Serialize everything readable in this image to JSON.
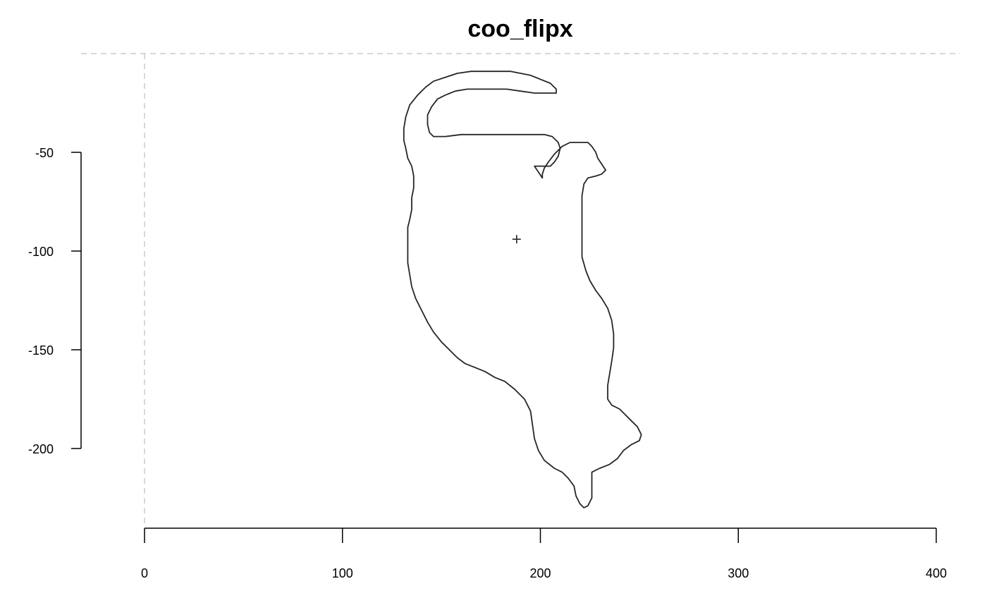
{
  "chart_data": {
    "type": "line",
    "title": "coo_flipx",
    "xlabel": "",
    "ylabel": "",
    "xlim": [
      0,
      400
    ],
    "ylim": [
      -250,
      0
    ],
    "x_ticks": [
      0,
      100,
      200,
      300,
      400
    ],
    "y_ticks": [
      -50,
      -100,
      -150,
      -200
    ],
    "x_tick_labels": [
      "0",
      "100",
      "200",
      "300",
      "400"
    ],
    "y_tick_labels": [
      "-50",
      "-100",
      "-150",
      "-200"
    ],
    "guides": {
      "vertical_at_x": 0,
      "horizontal_at_y": 0
    },
    "centroid": {
      "x": 188,
      "y": -94
    },
    "series": [
      {
        "points": [
          [
            180,
            -9
          ],
          [
            173,
            -9
          ],
          [
            165,
            -9
          ],
          [
            158,
            -10
          ],
          [
            152,
            -12
          ],
          [
            146,
            -14
          ],
          [
            142,
            -17
          ],
          [
            138,
            -21
          ],
          [
            134,
            -26
          ],
          [
            132,
            -32
          ],
          [
            131,
            -38
          ],
          [
            131,
            -44
          ],
          [
            132,
            -48
          ],
          [
            133,
            -53
          ],
          [
            135,
            -57
          ],
          [
            136,
            -62
          ],
          [
            136,
            -68
          ],
          [
            135,
            -73
          ],
          [
            135,
            -79
          ],
          [
            134,
            -84
          ],
          [
            133,
            -88
          ],
          [
            133,
            -93
          ],
          [
            133,
            -100
          ],
          [
            133,
            -106
          ],
          [
            134,
            -112
          ],
          [
            135,
            -118
          ],
          [
            137,
            -124
          ],
          [
            140,
            -130
          ],
          [
            143,
            -136
          ],
          [
            146,
            -141
          ],
          [
            150,
            -146
          ],
          [
            154,
            -150
          ],
          [
            158,
            -154
          ],
          [
            162,
            -157
          ],
          [
            167,
            -159
          ],
          [
            172,
            -161
          ],
          [
            177,
            -164
          ],
          [
            182,
            -166
          ],
          [
            187,
            -170
          ],
          [
            192,
            -175
          ],
          [
            195,
            -181
          ],
          [
            196,
            -188
          ],
          [
            197,
            -195
          ],
          [
            199,
            -201
          ],
          [
            202,
            -206
          ],
          [
            207,
            -210
          ],
          [
            211,
            -212
          ],
          [
            214,
            -215
          ],
          [
            217,
            -219
          ],
          [
            218,
            -224
          ],
          [
            220,
            -228
          ],
          [
            222,
            -230
          ],
          [
            224,
            -229
          ],
          [
            226,
            -225
          ],
          [
            226,
            -218
          ],
          [
            226,
            -212
          ],
          [
            230,
            -210
          ],
          [
            235,
            -208
          ],
          [
            239,
            -205
          ],
          [
            242,
            -201
          ],
          [
            246,
            -198
          ],
          [
            250,
            -196
          ],
          [
            251,
            -193
          ],
          [
            249,
            -189
          ],
          [
            246,
            -186
          ],
          [
            243,
            -183
          ],
          [
            240,
            -180
          ],
          [
            236,
            -178
          ],
          [
            234,
            -175
          ],
          [
            234,
            -168
          ],
          [
            235,
            -162
          ],
          [
            236,
            -156
          ],
          [
            237,
            -149
          ],
          [
            237,
            -142
          ],
          [
            236,
            -135
          ],
          [
            234,
            -129
          ],
          [
            231,
            -124
          ],
          [
            228,
            -120
          ],
          [
            225,
            -115
          ],
          [
            223,
            -110
          ],
          [
            221,
            -103
          ],
          [
            221,
            -96
          ],
          [
            221,
            -88
          ],
          [
            221,
            -80
          ],
          [
            221,
            -72
          ],
          [
            222,
            -66
          ],
          [
            224,
            -63
          ],
          [
            228,
            -62
          ],
          [
            231,
            -61
          ],
          [
            233,
            -59
          ],
          [
            231,
            -56
          ],
          [
            229,
            -53
          ],
          [
            228,
            -50
          ],
          [
            226,
            -47
          ],
          [
            224,
            -45
          ],
          [
            219,
            -45
          ],
          [
            215,
            -45
          ],
          [
            211,
            -47
          ],
          [
            207,
            -51
          ],
          [
            204,
            -55
          ],
          [
            202,
            -58
          ],
          [
            201,
            -61
          ],
          [
            201,
            -63
          ],
          [
            199,
            -60
          ],
          [
            197,
            -57
          ],
          [
            205,
            -57
          ],
          [
            207,
            -55
          ],
          [
            209,
            -52
          ],
          [
            210,
            -48
          ],
          [
            209,
            -45
          ],
          [
            206,
            -42
          ],
          [
            202,
            -41
          ],
          [
            197,
            -41
          ],
          [
            190,
            -41
          ],
          [
            184,
            -41
          ],
          [
            176,
            -41
          ],
          [
            168,
            -41
          ],
          [
            160,
            -41
          ],
          [
            152,
            -42
          ],
          [
            146,
            -42
          ],
          [
            144,
            -40
          ],
          [
            143,
            -36
          ],
          [
            143,
            -31
          ],
          [
            145,
            -27
          ],
          [
            148,
            -23
          ],
          [
            152,
            -21
          ],
          [
            157,
            -19
          ],
          [
            163,
            -18
          ],
          [
            170,
            -18
          ],
          [
            177,
            -18
          ],
          [
            183,
            -18
          ],
          [
            190,
            -19
          ],
          [
            197,
            -20
          ],
          [
            203,
            -20
          ],
          [
            208,
            -20
          ],
          [
            208,
            -18
          ],
          [
            205,
            -15
          ],
          [
            200,
            -13
          ],
          [
            195,
            -11
          ],
          [
            190,
            -10
          ],
          [
            185,
            -9
          ],
          [
            180,
            -9
          ]
        ]
      }
    ]
  }
}
